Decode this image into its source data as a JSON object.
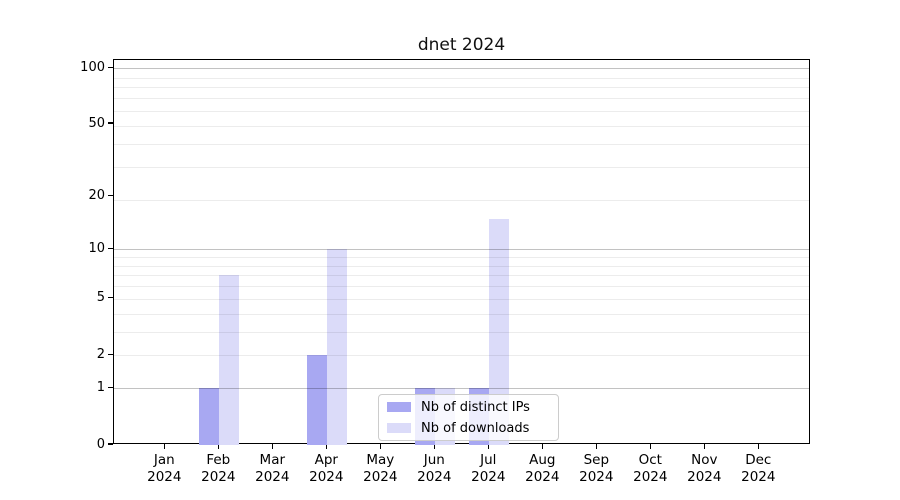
{
  "title": "dnet 2024",
  "chart_data": {
    "type": "bar",
    "title": "dnet 2024",
    "x_categories": [
      "Jan 2024",
      "Feb 2024",
      "Mar 2024",
      "Apr 2024",
      "May 2024",
      "Jun 2024",
      "Jul 2024",
      "Aug 2024",
      "Sep 2024",
      "Oct 2024",
      "Nov 2024",
      "Dec 2024"
    ],
    "series": [
      {
        "name": "Nb of distinct IPs",
        "key": "distinct-ips",
        "color": "#a8a8f2",
        "values": [
          0,
          1,
          0,
          2,
          0,
          1,
          1,
          0,
          0,
          0,
          0,
          0
        ]
      },
      {
        "name": "Nb of downloads",
        "key": "downloads",
        "color": "#dbdbf9",
        "values": [
          0,
          7,
          0,
          10,
          0,
          1,
          15,
          0,
          0,
          0,
          0,
          0
        ]
      }
    ],
    "xlabel": "",
    "ylabel": "",
    "y_scale": "log10(1+y)",
    "ylim": [
      0,
      110
    ],
    "y_ticks": [
      0,
      1,
      2,
      5,
      10,
      20,
      50,
      100
    ],
    "y_major_gridlines": [
      1,
      10,
      100
    ],
    "y_minor_gridlines": [
      2,
      3,
      4,
      5,
      6,
      7,
      8,
      9,
      19,
      29,
      39,
      49,
      59,
      69,
      79,
      89
    ],
    "grid": "horizontal",
    "legend_position": "lower-center",
    "background": "#ffffff",
    "spine_color": "#000000"
  }
}
